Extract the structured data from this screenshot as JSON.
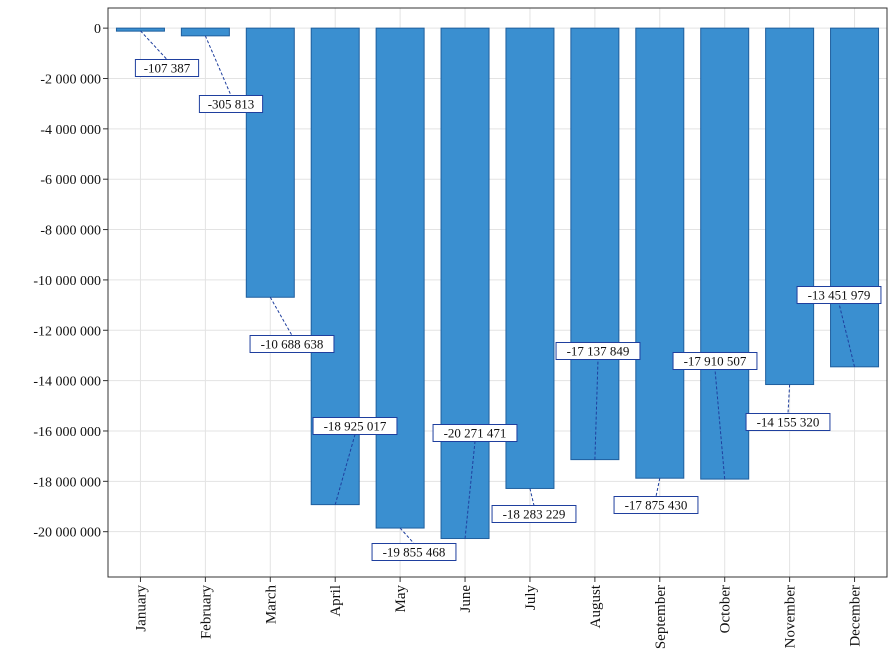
{
  "chart_data": {
    "type": "bar",
    "title": "",
    "xlabel": "",
    "ylabel": "",
    "categories": [
      "January",
      "February",
      "March",
      "April",
      "May",
      "June",
      "July",
      "August",
      "September",
      "October",
      "November",
      "December"
    ],
    "values": [
      -107387,
      -305813,
      -10688638,
      -18925017,
      -19855468,
      -20271471,
      -18283229,
      -17137849,
      -17875430,
      -17910507,
      -14155320,
      -13451979
    ],
    "data_labels": [
      "-107 387",
      "-305 813",
      "-10 688 638",
      "-18 925 017",
      "-19 855 468",
      "-20 271 471",
      "-18 283 229",
      "-17 137 849",
      "-17 875 430",
      "-17 910 507",
      "-14 155 320",
      "-13 451 979"
    ],
    "ylim": [
      -21800000,
      800000
    ],
    "yticks": [
      0,
      -2000000,
      -4000000,
      -6000000,
      -8000000,
      -10000000,
      -12000000,
      -14000000,
      -16000000,
      -18000000,
      -20000000
    ],
    "ytick_labels": [
      "0",
      "-2 000 000",
      "-4 000 000",
      "-6 000 000",
      "-8 000 000",
      "-10 000 000",
      "-12 000 000",
      "-14 000 000",
      "-16 000 000",
      "-18 000 000",
      "-20 000 000"
    ],
    "grid": true,
    "bar_color": "#3a8fd0",
    "bar_edge_color": "#1f5f9e",
    "label_box_color": "#1f3f9e"
  }
}
